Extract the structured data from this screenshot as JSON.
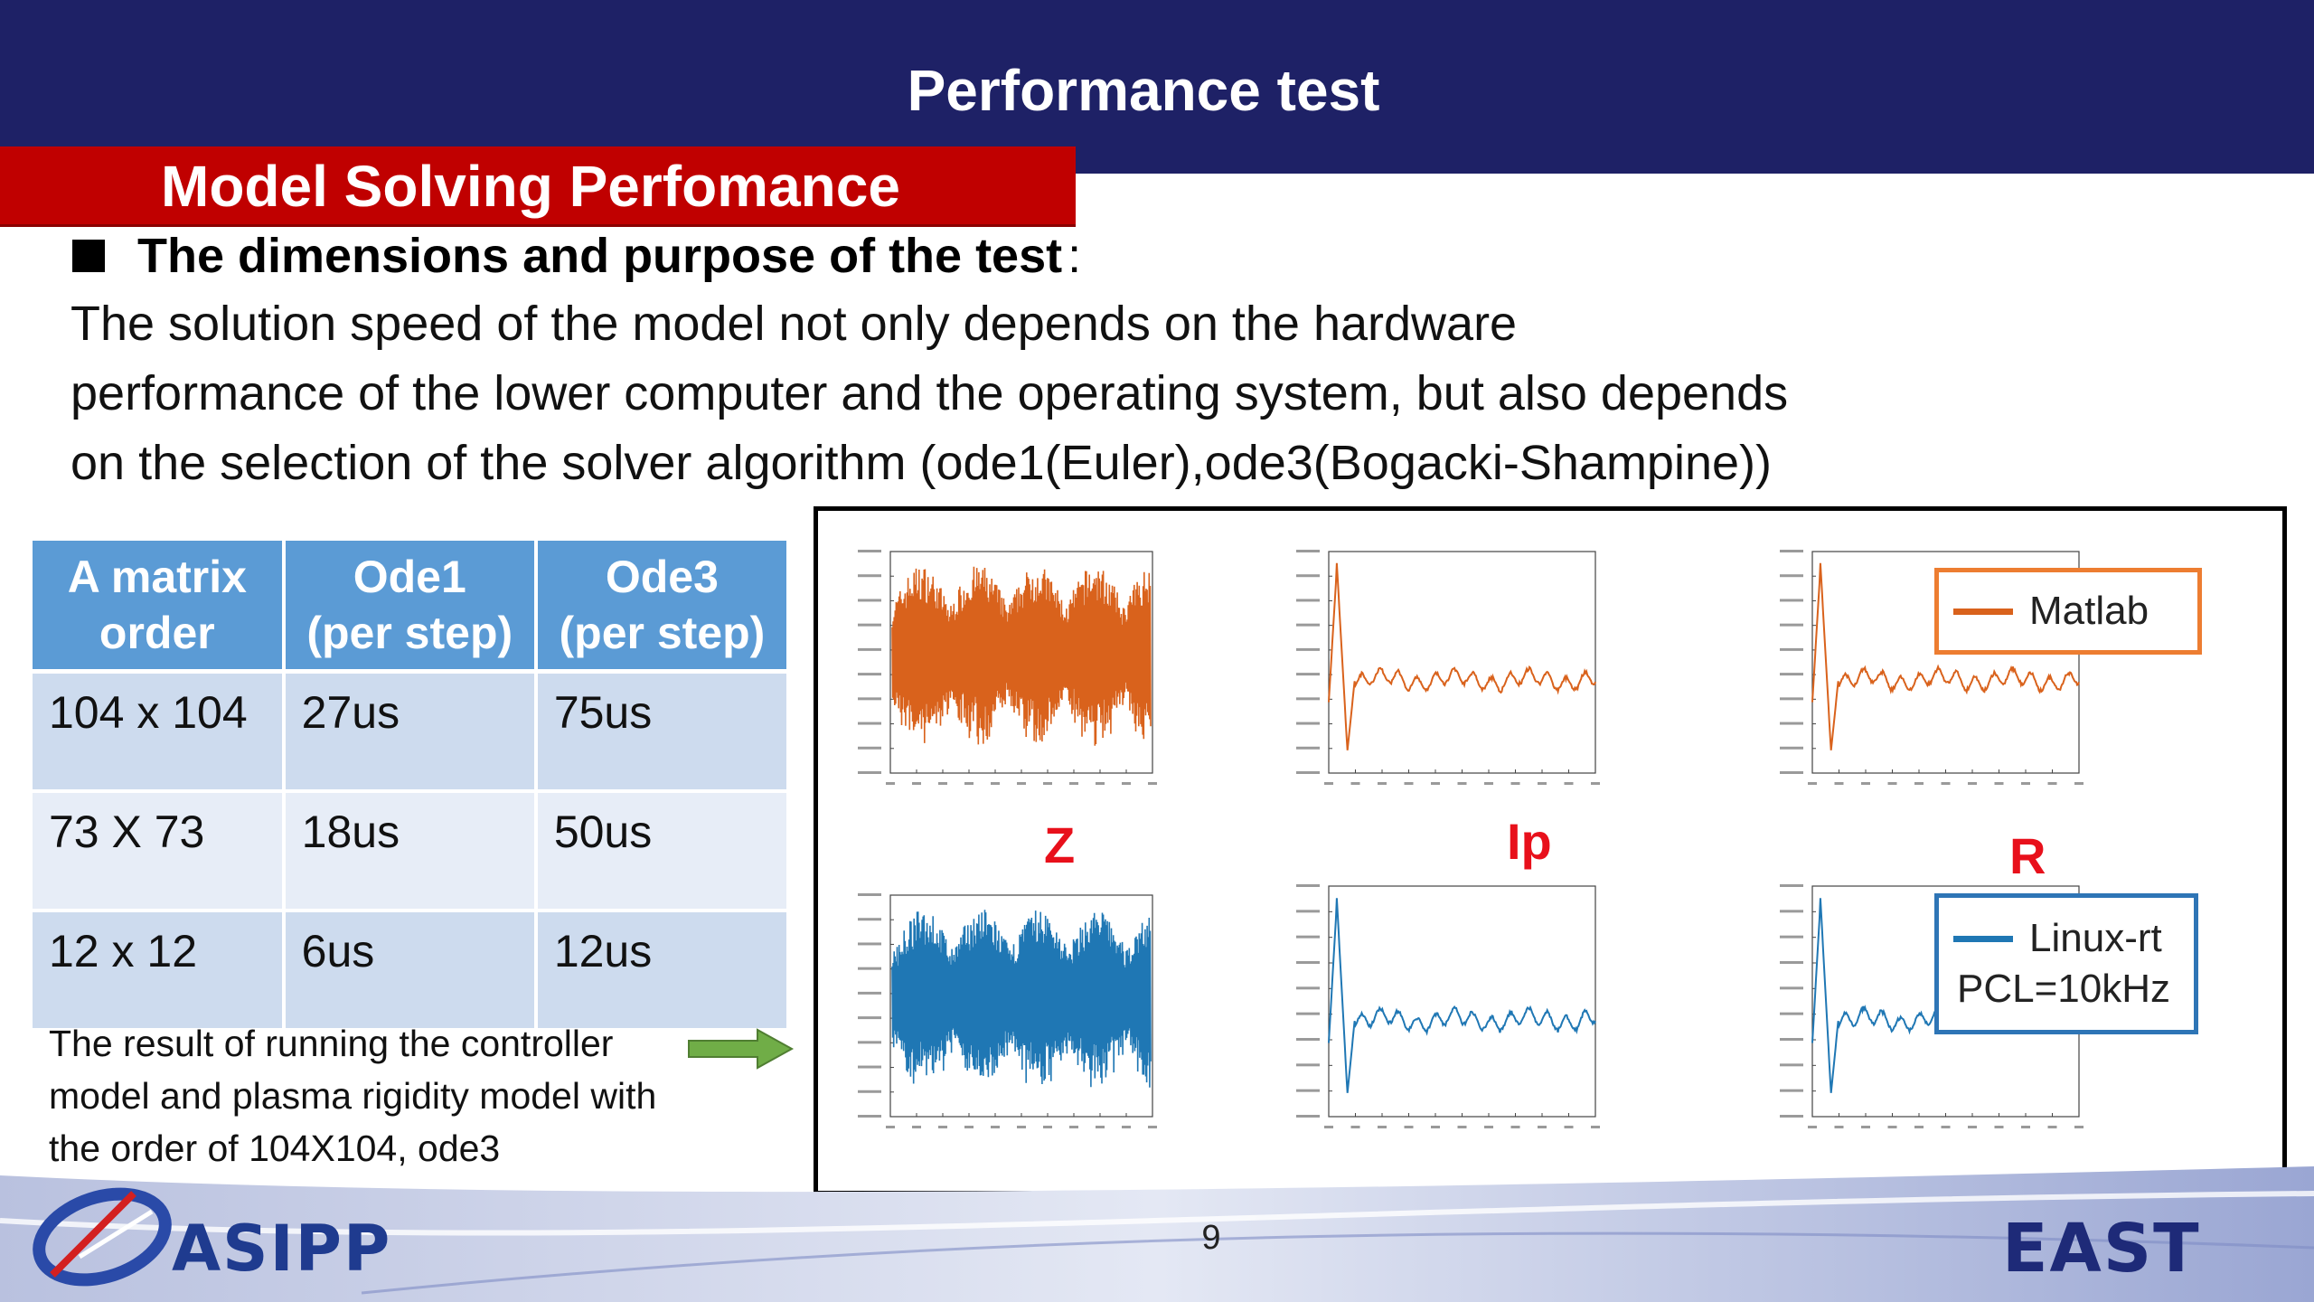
{
  "slide": {
    "title": "Performance test",
    "section_title": "Model Solving Perfomance",
    "bullet_heading": "The dimensions and purpose of the test",
    "bullet_colon": ":",
    "paragraph_lines": [
      "The solution speed of the model not only depends on the hardware",
      "performance of the lower computer and the operating system, but also depends",
      "on the selection of the solver algorithm (ode1(Euler),ode3(Bogacki-Shampine))"
    ],
    "page_number": "9"
  },
  "table": {
    "headers": [
      [
        "A matrix",
        "order"
      ],
      [
        "Ode1",
        "(per step)"
      ],
      [
        "Ode3",
        "(per step)"
      ]
    ],
    "rows": [
      [
        "104 x 104",
        "27us",
        "75us"
      ],
      [
        "73 X 73",
        "18us",
        "50us"
      ],
      [
        "12 x 12",
        "6us",
        "12us"
      ]
    ]
  },
  "caption_lines": [
    "The result of running the controller",
    "model and plasma rigidity model with",
    "the order of 104X104, ode3"
  ],
  "plots": {
    "channel_labels": [
      "Z",
      "Ip",
      "R"
    ],
    "legend_matlab": "Matlab",
    "legend_linux_line1": "Linux-rt",
    "legend_linux_line2": "PCL=10kHz",
    "colors": {
      "matlab": "#d9621c",
      "linux": "#1f77b4"
    }
  },
  "logos": {
    "left": "ASIPP",
    "right": "EAST"
  }
}
